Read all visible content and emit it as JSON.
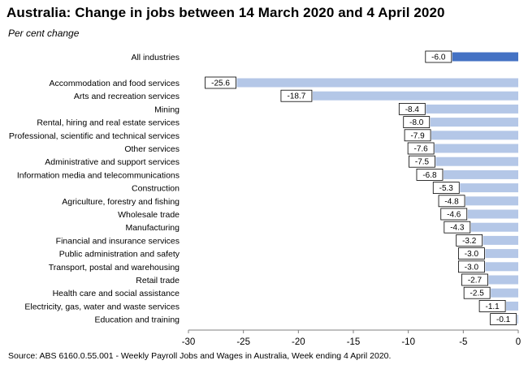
{
  "title": "Australia:  Change in jobs between 14 March 2020 and 4 April 2020",
  "subtitle": "Per cent change",
  "source": "Source: ABS 6160.0.55.001 - Weekly Payroll Jobs and Wages in Australia, Week ending 4 April 2020.",
  "colors": {
    "highlight": "#4472c4",
    "bar": "#b4c7e7",
    "axis": "#7f7f7f",
    "label_border": "#000000"
  },
  "chart_data": {
    "type": "bar",
    "orientation": "horizontal",
    "title": "Australia:  Change in jobs between 14 March 2020 and 4 April 2020",
    "subtitle": "Per cent change",
    "xlim": [
      -30,
      0
    ],
    "x_ticks": [
      "-30",
      "-25",
      "-20",
      "-15",
      "-10",
      "-5",
      "0"
    ],
    "x_tick_values": [
      -30,
      -25,
      -20,
      -15,
      -10,
      -5,
      0
    ],
    "grid": false,
    "data_labels": true,
    "categories": [
      "All industries",
      "Accommodation and food services",
      "Arts and recreation services",
      "Mining",
      "Rental, hiring and real estate services",
      "Professional, scientific and technical services",
      "Other services",
      "Administrative and support services",
      "Information media and telecommunications",
      "Construction",
      "Agriculture, forestry and fishing",
      "Wholesale trade",
      "Manufacturing",
      "Financial and insurance services",
      "Public administration and safety",
      "Transport, postal and warehousing",
      "Retail trade",
      "Health care and social assistance",
      "Electricity, gas, water and waste services",
      "Education and training"
    ],
    "values": [
      -6.0,
      -25.6,
      -18.7,
      -8.4,
      -8.0,
      -7.9,
      -7.6,
      -7.5,
      -6.8,
      -5.3,
      -4.8,
      -4.6,
      -4.3,
      -3.2,
      -3.0,
      -3.0,
      -2.7,
      -2.5,
      -1.1,
      -0.1
    ],
    "value_labels": [
      "-6.0",
      "-25.6",
      "-18.7",
      "-8.4",
      "-8.0",
      "-7.9",
      "-7.6",
      "-7.5",
      "-6.8",
      "-5.3",
      "-4.8",
      "-4.6",
      "-4.3",
      "-3.2",
      "-3.0",
      "-3.0",
      "-2.7",
      "-2.5",
      "-1.1",
      "-0.1"
    ],
    "highlighted_category": "All industries"
  }
}
